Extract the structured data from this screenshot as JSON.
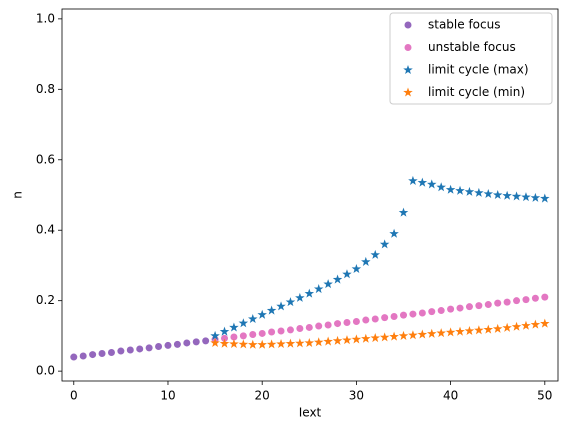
{
  "chart_data": {
    "type": "scatter",
    "x_label": "Iext",
    "y_label": "n",
    "xlim": [
      -1.25,
      51.4
    ],
    "ylim": [
      -0.028,
      1.028
    ],
    "xticks": [
      0,
      10,
      20,
      30,
      40,
      50
    ],
    "yticks": [
      {
        "value": 0,
        "label": "0.0"
      },
      {
        "value": 0.2,
        "label": "0.2"
      },
      {
        "value": 0.4,
        "label": "0.4"
      },
      {
        "value": 0.6,
        "label": "0.6"
      },
      {
        "value": 0.8,
        "label": "0.8"
      },
      {
        "value": 1.0,
        "label": "1.0"
      }
    ],
    "legend": "upper right",
    "series": [
      {
        "name": "stable focus",
        "color": "#9467bd",
        "marker": "circle",
        "x": [
          0,
          1,
          2,
          3,
          4,
          5,
          6,
          7,
          8,
          9,
          10,
          11,
          12,
          13,
          14,
          15
        ],
        "values": [
          0.04,
          0.043,
          0.047,
          0.05,
          0.053,
          0.057,
          0.06,
          0.063,
          0.066,
          0.07,
          0.073,
          0.076,
          0.08,
          0.083,
          0.086,
          0.09
        ]
      },
      {
        "name": "unstable focus",
        "color": "#e377c2",
        "marker": "circle",
        "x": [
          15,
          16,
          17,
          18,
          19,
          20,
          21,
          22,
          23,
          24,
          25,
          26,
          27,
          28,
          29,
          30,
          31,
          32,
          33,
          34,
          35,
          36,
          37,
          38,
          39,
          40,
          41,
          42,
          43,
          44,
          45,
          46,
          47,
          48,
          49,
          50
        ],
        "values": [
          0.09,
          0.093,
          0.097,
          0.1,
          0.104,
          0.107,
          0.111,
          0.114,
          0.117,
          0.121,
          0.124,
          0.128,
          0.131,
          0.135,
          0.138,
          0.141,
          0.145,
          0.148,
          0.152,
          0.155,
          0.159,
          0.162,
          0.165,
          0.169,
          0.172,
          0.176,
          0.179,
          0.183,
          0.186,
          0.189,
          0.193,
          0.196,
          0.2,
          0.203,
          0.207,
          0.21
        ]
      },
      {
        "name": "limit cycle (max)",
        "color": "#1f77b4",
        "marker": "star",
        "x": [
          15,
          16,
          17,
          18,
          19,
          20,
          21,
          22,
          23,
          24,
          25,
          26,
          27,
          28,
          29,
          30,
          31,
          32,
          33,
          34,
          35,
          36,
          37,
          38,
          39,
          40,
          41,
          42,
          43,
          44,
          45,
          46,
          47,
          48,
          49,
          50
        ],
        "values": [
          0.1,
          0.112,
          0.124,
          0.136,
          0.148,
          0.16,
          0.172,
          0.184,
          0.196,
          0.208,
          0.22,
          0.233,
          0.247,
          0.26,
          0.275,
          0.29,
          0.31,
          0.33,
          0.36,
          0.39,
          0.45,
          0.54,
          0.535,
          0.53,
          0.522,
          0.515,
          0.512,
          0.509,
          0.506,
          0.503,
          0.5,
          0.498,
          0.496,
          0.494,
          0.492,
          0.49
        ]
      },
      {
        "name": "limit cycle (min)",
        "color": "#ff7f0e",
        "marker": "star",
        "x": [
          15,
          16,
          17,
          18,
          19,
          20,
          21,
          22,
          23,
          24,
          25,
          26,
          27,
          28,
          29,
          30,
          31,
          32,
          33,
          34,
          35,
          36,
          37,
          38,
          39,
          40,
          41,
          42,
          43,
          44,
          45,
          46,
          47,
          48,
          49,
          50
        ],
        "values": [
          0.08,
          0.078,
          0.077,
          0.076,
          0.075,
          0.075,
          0.076,
          0.077,
          0.078,
          0.079,
          0.08,
          0.082,
          0.084,
          0.086,
          0.088,
          0.09,
          0.092,
          0.094,
          0.096,
          0.098,
          0.1,
          0.102,
          0.104,
          0.106,
          0.108,
          0.11,
          0.112,
          0.114,
          0.116,
          0.118,
          0.12,
          0.123,
          0.126,
          0.129,
          0.132,
          0.135
        ]
      }
    ]
  }
}
